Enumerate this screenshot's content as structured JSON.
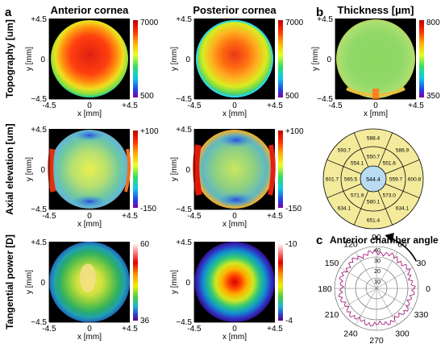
{
  "panel_labels": {
    "a": "a",
    "b": "b",
    "c": "c"
  },
  "titles": {
    "anterior": "Anterior cornea",
    "posterior": "Posterior cornea",
    "thickness": "Thickness [µm]",
    "angle": "Anterior chamber angle"
  },
  "row_labels": {
    "topography": "Topography [um]",
    "elevation": "Axial elevation [um]",
    "power": "Tangential power [D]"
  },
  "axes": {
    "xlabel": "x [mm]",
    "ylabel": "y [mm]",
    "pos": "+4.5",
    "neg": "-4.5",
    "neg_y": "−4.5",
    "zero": "0"
  },
  "colorbars": {
    "topo_ant": {
      "max": "7000",
      "min": "500"
    },
    "topo_post": {
      "max": "7000",
      "min": "500"
    },
    "elev_ant": {
      "max": "+100",
      "min": "-150"
    },
    "elev_post": {
      "max": "+100",
      "min": "-150"
    },
    "pow_ant": {
      "max": "60",
      "min": "36"
    },
    "pow_post": {
      "max": "-10",
      "min": "-4"
    },
    "thick": {
      "max": "800",
      "min": "350"
    }
  },
  "pachymetry": {
    "center": "544.4",
    "inner": [
      "550.7",
      "551.6",
      "559.7",
      "573.0",
      "580.1",
      "571.9",
      "565.5",
      "554.1"
    ],
    "outer": [
      "588.4",
      "586.9",
      "600.8",
      "634.1",
      "651.4",
      "634.1",
      "601.7",
      "593.7"
    ]
  },
  "polar": {
    "angle_labels": [
      "90",
      "60",
      "30",
      "0",
      "330",
      "300",
      "270",
      "240",
      "210",
      "180",
      "150",
      "120"
    ],
    "radial_labels": [
      "40",
      "30",
      "20",
      "10"
    ]
  },
  "colors": {
    "accent_line": "#3a2a8a",
    "pachy_fill": "#f3ea9c",
    "pachy_center": "#b9dcf2"
  }
}
